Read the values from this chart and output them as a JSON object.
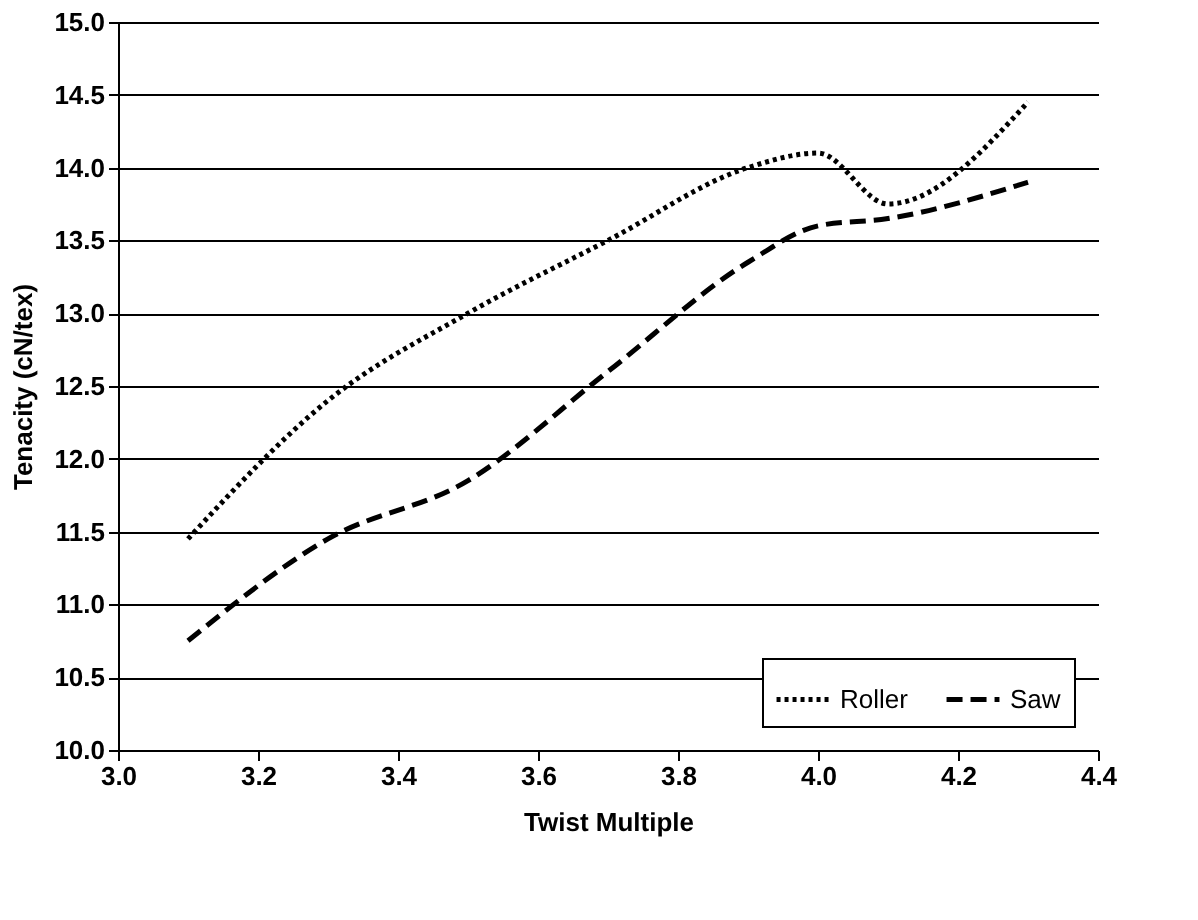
{
  "chart_data": {
    "type": "line",
    "xlabel": "Twist Multiple",
    "ylabel": "Tenacity (cN/tex)",
    "x": [
      3.1,
      3.3,
      3.5,
      3.7,
      3.9,
      4.0,
      4.1,
      4.3
    ],
    "series": [
      {
        "name": "Roller",
        "color": "#000000",
        "line_style": "dotted",
        "values": [
          11.45,
          12.4,
          13.0,
          13.5,
          14.0,
          14.1,
          13.75,
          14.45
        ]
      },
      {
        "name": "Saw",
        "color": "#000000",
        "line_style": "dashed",
        "values": [
          10.75,
          11.45,
          11.85,
          12.6,
          13.35,
          13.6,
          13.65,
          13.9
        ]
      }
    ],
    "xlim": [
      3.0,
      4.4
    ],
    "xticks": [
      {
        "value": 3.0,
        "label": "3.0"
      },
      {
        "value": 3.2,
        "label": "3.2"
      },
      {
        "value": 3.4,
        "label": "3.4"
      },
      {
        "value": 3.6,
        "label": "3.6"
      },
      {
        "value": 3.8,
        "label": "3.8"
      },
      {
        "value": 4.0,
        "label": "4.0"
      },
      {
        "value": 4.2,
        "label": "4.2"
      },
      {
        "value": 4.4,
        "label": "4.4"
      }
    ],
    "ylim": [
      10.0,
      15.0
    ],
    "yticks": [
      {
        "value": 10.0,
        "label": "10.0"
      },
      {
        "value": 10.5,
        "label": "10.5"
      },
      {
        "value": 11.0,
        "label": "11.0"
      },
      {
        "value": 11.5,
        "label": "11.5"
      },
      {
        "value": 12.0,
        "label": "12.0"
      },
      {
        "value": 12.5,
        "label": "12.5"
      },
      {
        "value": 13.0,
        "label": "13.0"
      },
      {
        "value": 13.5,
        "label": "13.5"
      },
      {
        "value": 14.0,
        "label": "14.0"
      },
      {
        "value": 14.5,
        "label": "14.5"
      },
      {
        "value": 15.0,
        "label": "15.0"
      }
    ],
    "grid": "y",
    "legend": "bottom right",
    "marker": "none"
  }
}
